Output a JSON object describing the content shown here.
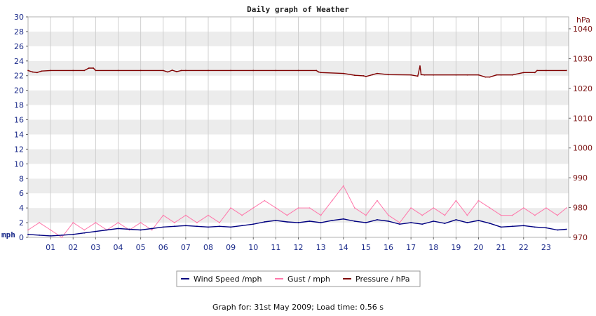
{
  "chart_data": {
    "type": "line",
    "title": "Daily graph of Weather",
    "x_ticks": [
      "01",
      "02",
      "03",
      "04",
      "05",
      "06",
      "07",
      "08",
      "09",
      "10",
      "11",
      "12",
      "13",
      "14",
      "15",
      "16",
      "17",
      "18",
      "19",
      "20",
      "21",
      "22",
      "23"
    ],
    "xlim": [
      0,
      24
    ],
    "left_axis": {
      "unit": "mph",
      "ylim": [
        0,
        30
      ],
      "ticks": [
        "0",
        "2",
        "4",
        "6",
        "8",
        "10",
        "12",
        "14",
        "16",
        "18",
        "20",
        "22",
        "24",
        "26",
        "28",
        "30"
      ]
    },
    "right_axis": {
      "unit": "hPa",
      "ylim": [
        970,
        1044
      ],
      "ticks": [
        "970",
        "980",
        "990",
        "1000",
        "1010",
        "1020",
        "1030",
        "1040"
      ]
    },
    "grid": true,
    "legend_position": "bottom-center",
    "series": [
      {
        "name": "Wind Speed /mph",
        "axis": "left",
        "color": "#000080",
        "x": [
          0,
          0.5,
          1,
          1.5,
          2,
          2.5,
          3,
          3.5,
          4,
          4.5,
          5,
          5.5,
          6,
          6.5,
          7,
          7.5,
          8,
          8.5,
          9,
          9.5,
          10,
          10.5,
          11,
          11.5,
          12,
          12.5,
          13,
          13.5,
          14,
          14.5,
          15,
          15.5,
          16,
          16.5,
          17,
          17.5,
          18,
          18.5,
          19,
          19.5,
          20,
          20.5,
          21,
          21.5,
          22,
          22.5,
          23,
          23.5,
          23.9
        ],
        "values": [
          0.4,
          0.3,
          0.2,
          0.3,
          0.4,
          0.6,
          0.8,
          1.0,
          1.2,
          1.1,
          1.0,
          1.2,
          1.4,
          1.5,
          1.6,
          1.5,
          1.4,
          1.5,
          1.4,
          1.6,
          1.8,
          2.1,
          2.3,
          2.1,
          2.0,
          2.2,
          2.0,
          2.3,
          2.5,
          2.2,
          2.0,
          2.4,
          2.2,
          1.8,
          2.0,
          1.8,
          2.2,
          1.9,
          2.4,
          2.0,
          2.3,
          1.9,
          1.4,
          1.5,
          1.6,
          1.4,
          1.3,
          1.0,
          1.1
        ]
      },
      {
        "name": "Gust / mph",
        "axis": "left",
        "color": "#ff77aa",
        "x": [
          0,
          0.5,
          1,
          1.5,
          2,
          2.5,
          3,
          3.5,
          4,
          4.5,
          5,
          5.5,
          6,
          6.5,
          7,
          7.5,
          8,
          8.5,
          9,
          9.5,
          10,
          10.5,
          11,
          11.5,
          12,
          12.5,
          13,
          13.5,
          14,
          14.5,
          15,
          15.5,
          16,
          16.5,
          17,
          17.5,
          18,
          18.5,
          19,
          19.5,
          20,
          20.5,
          21,
          21.5,
          22,
          22.5,
          23,
          23.5,
          23.9
        ],
        "values": [
          1,
          2,
          1,
          0,
          2,
          1,
          2,
          1,
          2,
          1,
          2,
          1,
          3,
          2,
          3,
          2,
          3,
          2,
          4,
          3,
          4,
          5,
          4,
          3,
          4,
          4,
          3,
          5,
          7,
          4,
          3,
          5,
          3,
          2,
          4,
          3,
          4,
          3,
          5,
          3,
          5,
          4,
          3,
          3,
          4,
          3,
          4,
          3,
          4
        ]
      },
      {
        "name": "Pressure / hPa",
        "axis": "right",
        "color": "#800000",
        "x": [
          0,
          0.2,
          0.4,
          0.6,
          1,
          2,
          2.5,
          2.7,
          2.9,
          3,
          4,
          5,
          6,
          6.2,
          6.4,
          6.6,
          6.8,
          7,
          8,
          9,
          10,
          11,
          12,
          12.8,
          12.9,
          13,
          14,
          14.5,
          14.9,
          15,
          15.3,
          15.5,
          16,
          17,
          17.3,
          17.4,
          17.45,
          17.6,
          18,
          19,
          19.5,
          20,
          20.3,
          20.5,
          20.8,
          21,
          21.5,
          22,
          22.5,
          22.6,
          23,
          23.9
        ],
        "values": [
          1026,
          1025.5,
          1025.3,
          1025.8,
          1026,
          1026,
          1026,
          1026.8,
          1026.8,
          1026,
          1026,
          1026,
          1026,
          1025.5,
          1026.1,
          1025.6,
          1026,
          1026,
          1026,
          1026,
          1026,
          1026,
          1026,
          1026,
          1025.5,
          1025.3,
          1025,
          1024.4,
          1024.2,
          1024,
          1024.6,
          1025,
          1024.6,
          1024.5,
          1024.1,
          1027.5,
          1024.6,
          1024.5,
          1024.5,
          1024.5,
          1024.5,
          1024.5,
          1023.8,
          1023.8,
          1024.5,
          1024.5,
          1024.5,
          1025.3,
          1025.3,
          1026,
          1026,
          1026
        ]
      }
    ]
  },
  "footer": {
    "text": "Graph for: 31st May 2009; Load time: 0.56 s"
  }
}
